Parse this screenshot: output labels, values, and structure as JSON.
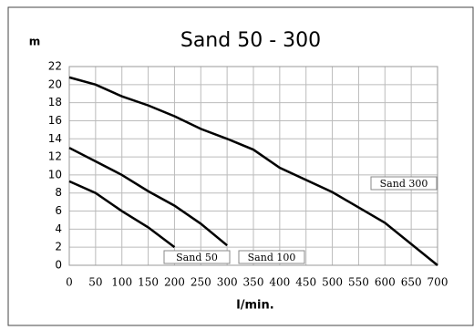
{
  "chart_data": {
    "type": "line",
    "title": "Sand 50 - 300",
    "y_label": "m",
    "x_label": "l/min.",
    "xlim": [
      0,
      700
    ],
    "xticks": [
      0,
      50,
      100,
      150,
      200,
      250,
      300,
      350,
      400,
      450,
      500,
      550,
      600,
      650,
      700
    ],
    "ylim": [
      0,
      22
    ],
    "yticks": [
      0,
      2,
      4,
      6,
      8,
      10,
      12,
      14,
      16,
      18,
      20,
      22
    ],
    "grid": true,
    "series": [
      {
        "name": "Sand 50",
        "color": "#000000",
        "x": [
          0,
          50,
          100,
          150,
          200
        ],
        "values": [
          9.3,
          8,
          6,
          4.2,
          2
        ]
      },
      {
        "name": "Sand 100",
        "color": "#000000",
        "x": [
          0,
          50,
          100,
          150,
          200,
          250,
          300
        ],
        "values": [
          13,
          11.5,
          10,
          8.2,
          6.6,
          4.6,
          2.2
        ]
      },
      {
        "name": "Sand 300",
        "color": "#000000",
        "x": [
          0,
          50,
          100,
          150,
          200,
          250,
          300,
          350,
          400,
          500,
          600,
          700
        ],
        "values": [
          20.8,
          20,
          18.7,
          17.7,
          16.5,
          15.1,
          14,
          12.8,
          10.8,
          8.1,
          4.7,
          0
        ]
      }
    ]
  }
}
